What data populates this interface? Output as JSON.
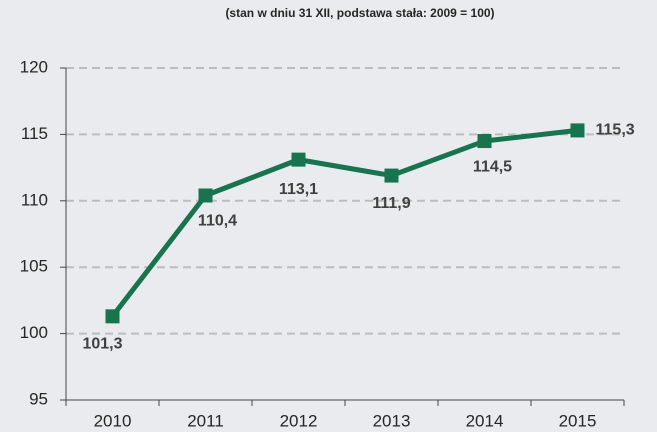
{
  "chart_data": {
    "type": "line",
    "subtitle": "(stan w dniu 31 XII, podstawa stała: 2009 = 100)",
    "categories": [
      "2010",
      "2011",
      "2012",
      "2013",
      "2014",
      "2015"
    ],
    "series": [
      {
        "name": null,
        "color": "#17744f",
        "values": [
          101.3,
          110.4,
          113.1,
          111.9,
          114.5,
          115.3
        ],
        "value_labels": [
          "101,3",
          "110,4",
          "113,1",
          "111,9",
          "114,5",
          "115,3"
        ]
      }
    ],
    "ylim": [
      95,
      120
    ],
    "yticks": [
      95,
      100,
      105,
      110,
      115,
      120
    ],
    "grid": true
  }
}
